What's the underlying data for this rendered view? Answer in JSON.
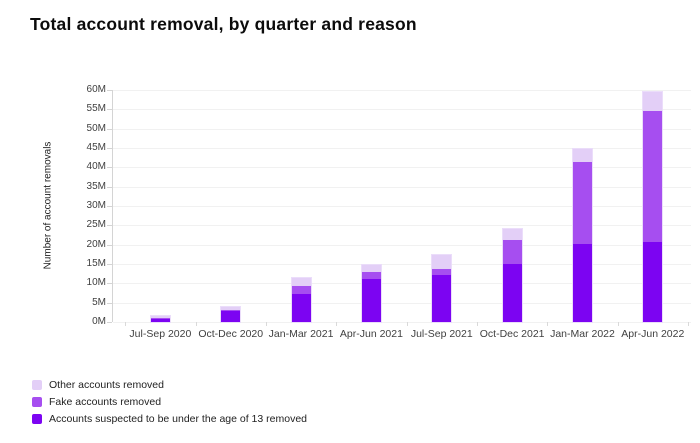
{
  "title": "Total account removal, by quarter and reason",
  "chart_data": {
    "type": "bar",
    "stacked": true,
    "title": "Total account removal, by quarter and reason",
    "xlabel": "",
    "ylabel": "Number of account removals",
    "ylim": [
      0,
      60
    ],
    "ytick_step": 5,
    "ytick_suffix": "M",
    "grid": true,
    "legend_position": "bottom-left",
    "categories": [
      "Jul-Sep 2020",
      "Oct-Dec 2020",
      "Jan-Mar 2021",
      "Apr-Jun 2021",
      "Jul-Sep 2021",
      "Oct-Dec 2021",
      "Jan-Mar 2022",
      "Apr-Jun 2022"
    ],
    "series": [
      {
        "name": "Accounts suspected to be under the age of 13 removed",
        "color": "#7c04f2",
        "values": [
          0.8,
          2.8,
          7.3,
          11.1,
          12.2,
          15.0,
          20.2,
          20.6
        ]
      },
      {
        "name": "Fake accounts removed",
        "color": "#a64ef0",
        "values": [
          0.2,
          0.3,
          2.1,
          1.7,
          1.5,
          6.2,
          21.3,
          34.0
        ]
      },
      {
        "name": "Other accounts removed",
        "color": "#e3cff7",
        "values": [
          0.6,
          0.8,
          1.9,
          2.0,
          3.5,
          2.8,
          3.2,
          4.9
        ]
      }
    ]
  }
}
